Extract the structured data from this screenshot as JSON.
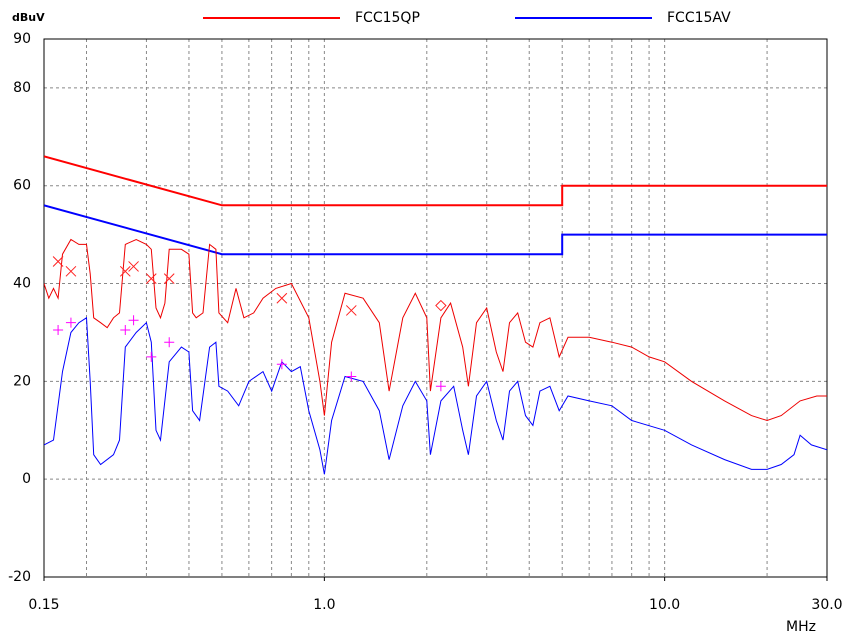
{
  "chart_data": {
    "type": "line",
    "y_label": "dBuV",
    "x_label": "MHz",
    "xscale": "log",
    "xlim": [
      0.15,
      30
    ],
    "ylim": [
      -20,
      90
    ],
    "xticks": [
      0.15,
      {
        "value": 1,
        "label": "1.0"
      },
      {
        "value": 10,
        "label": "10.0"
      },
      {
        "value": 30,
        "label": "30.0"
      }
    ],
    "xgrid": [
      0.2,
      0.3,
      0.4,
      0.5,
      0.6,
      0.7,
      0.8,
      0.9,
      1,
      2,
      3,
      4,
      5,
      6,
      7,
      8,
      9,
      10,
      20
    ],
    "yticks": [
      -20,
      0,
      20,
      40,
      60,
      80,
      90
    ],
    "grid": true,
    "legend": "top",
    "series": [
      {
        "name": "FCC15QP",
        "color": "#ff0000",
        "linewidth": 2,
        "x": [
          0.15,
          0.5,
          5,
          5,
          30
        ],
        "values": [
          66,
          56,
          56,
          60,
          60
        ]
      },
      {
        "name": "FCC15AV",
        "color": "#0000ff",
        "linewidth": 2,
        "x": [
          0.15,
          0.5,
          5,
          5,
          30
        ],
        "values": [
          56,
          46,
          46,
          50,
          50
        ]
      },
      {
        "color": "#ee0000",
        "linewidth": 1,
        "x": [
          0.15,
          0.155,
          0.16,
          0.165,
          0.17,
          0.18,
          0.19,
          0.2,
          0.205,
          0.21,
          0.22,
          0.23,
          0.24,
          0.25,
          0.26,
          0.28,
          0.3,
          0.31,
          0.32,
          0.33,
          0.34,
          0.35,
          0.38,
          0.4,
          0.41,
          0.42,
          0.44,
          0.46,
          0.48,
          0.49,
          0.52,
          0.55,
          0.58,
          0.62,
          0.66,
          0.72,
          0.8,
          0.9,
          0.97,
          1.0,
          1.05,
          1.15,
          1.3,
          1.45,
          1.55,
          1.7,
          1.85,
          2.0,
          2.05,
          2.2,
          2.35,
          2.55,
          2.65,
          2.8,
          3.0,
          3.2,
          3.35,
          3.5,
          3.7,
          3.9,
          4.1,
          4.3,
          4.6,
          4.9,
          5.2,
          6,
          7,
          8,
          9,
          10,
          12,
          15,
          18,
          20,
          22,
          25,
          28,
          30
        ],
        "values": [
          40,
          37,
          39,
          37,
          46,
          49,
          48,
          48,
          42,
          33,
          32,
          31,
          33,
          34,
          48,
          49,
          48,
          47,
          35,
          33,
          36,
          47,
          47,
          46,
          34,
          33,
          34,
          48,
          47,
          34,
          32,
          39,
          33,
          34,
          37,
          39,
          40,
          33,
          20,
          13,
          28,
          38,
          37,
          32,
          18,
          33,
          38,
          33,
          18,
          33,
          36,
          27,
          19,
          32,
          35,
          26,
          22,
          32,
          34,
          28,
          27,
          32,
          33,
          25,
          29,
          29,
          28,
          27,
          25,
          24,
          20,
          16,
          13,
          12,
          13,
          16,
          17,
          17
        ]
      },
      {
        "color": "#0000ff",
        "linewidth": 1,
        "x": [
          0.15,
          0.16,
          0.17,
          0.18,
          0.19,
          0.2,
          0.205,
          0.21,
          0.22,
          0.24,
          0.25,
          0.26,
          0.28,
          0.3,
          0.31,
          0.32,
          0.33,
          0.35,
          0.38,
          0.4,
          0.41,
          0.43,
          0.46,
          0.48,
          0.49,
          0.52,
          0.56,
          0.6,
          0.66,
          0.7,
          0.75,
          0.8,
          0.85,
          0.9,
          0.97,
          1.0,
          1.05,
          1.15,
          1.3,
          1.45,
          1.55,
          1.7,
          1.85,
          2.0,
          2.05,
          2.2,
          2.4,
          2.55,
          2.65,
          2.8,
          3.0,
          3.2,
          3.35,
          3.5,
          3.7,
          3.9,
          4.1,
          4.3,
          4.6,
          4.9,
          5.2,
          6,
          7,
          8,
          10,
          12,
          15,
          18,
          20,
          22,
          24,
          25,
          27,
          30
        ],
        "values": [
          7,
          8,
          22,
          30,
          32,
          33,
          20,
          5,
          3,
          5,
          8,
          27,
          30,
          32,
          28,
          10,
          8,
          24,
          27,
          26,
          14,
          12,
          27,
          28,
          19,
          18,
          15,
          20,
          22,
          18,
          24,
          22,
          23,
          14,
          6,
          1,
          12,
          21,
          20,
          14,
          4,
          15,
          20,
          16,
          5,
          16,
          19,
          10,
          5,
          17,
          20,
          12,
          8,
          18,
          20,
          13,
          11,
          18,
          19,
          14,
          17,
          16,
          15,
          12,
          10,
          7,
          4,
          2,
          2,
          3,
          5,
          9,
          7,
          6
        ]
      }
    ],
    "markers": [
      {
        "marker": "x",
        "color": "#ff2020",
        "x": [
          0.165,
          0.18,
          0.26,
          0.275,
          0.31,
          0.35,
          0.75,
          1.2
        ],
        "values": [
          44.5,
          42.5,
          42.5,
          43.5,
          41,
          41,
          37,
          34.5
        ]
      },
      {
        "marker": "diamond",
        "color": "#ff2020",
        "x": [
          2.2
        ],
        "values": [
          35.5
        ]
      },
      {
        "marker": "plus",
        "color": "#ff00ff",
        "x": [
          0.165,
          0.18,
          0.26,
          0.275,
          0.31,
          0.35,
          0.75,
          1.2,
          2.2
        ],
        "values": [
          30.5,
          32,
          30.5,
          32.5,
          25,
          28,
          23.5,
          21,
          19
        ]
      }
    ]
  }
}
